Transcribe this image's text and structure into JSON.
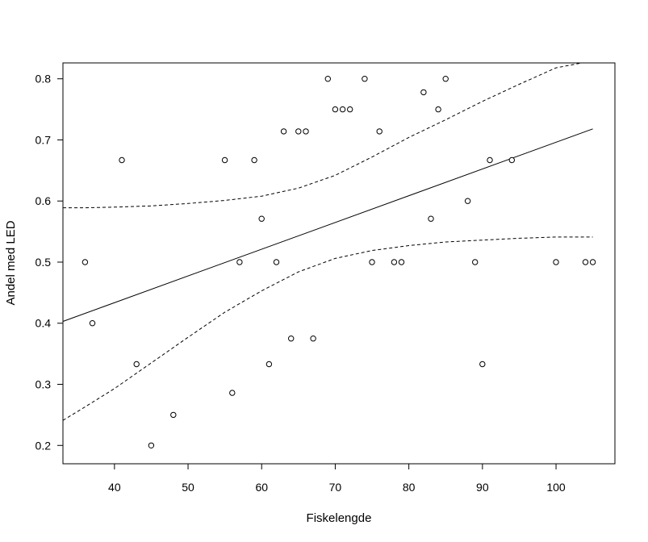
{
  "chart_data": {
    "type": "scatter",
    "title": "",
    "xlabel": "Fiskelengde",
    "ylabel": "Andel med LED",
    "xlim": [
      33,
      108
    ],
    "ylim": [
      0.17,
      0.826
    ],
    "xticks": [
      40,
      50,
      60,
      70,
      80,
      90,
      100
    ],
    "yticks": [
      0.2,
      0.3,
      0.4,
      0.5,
      0.6,
      0.7,
      0.8
    ],
    "xtick_labels": [
      "40",
      "50",
      "60",
      "70",
      "80",
      "90",
      "100"
    ],
    "ytick_labels": [
      "0.2",
      "0.3",
      "0.4",
      "0.5",
      "0.6",
      "0.7",
      "0.8"
    ],
    "grid": false,
    "points": [
      {
        "x": 36,
        "y": 0.5
      },
      {
        "x": 37,
        "y": 0.4
      },
      {
        "x": 41,
        "y": 0.667
      },
      {
        "x": 43,
        "y": 0.333
      },
      {
        "x": 45,
        "y": 0.2
      },
      {
        "x": 48,
        "y": 0.25
      },
      {
        "x": 55,
        "y": 0.667
      },
      {
        "x": 56,
        "y": 0.286
      },
      {
        "x": 57,
        "y": 0.5
      },
      {
        "x": 59,
        "y": 0.667
      },
      {
        "x": 60,
        "y": 0.571
      },
      {
        "x": 61,
        "y": 0.333
      },
      {
        "x": 62,
        "y": 0.5
      },
      {
        "x": 63,
        "y": 0.714
      },
      {
        "x": 64,
        "y": 0.375
      },
      {
        "x": 65,
        "y": 0.714
      },
      {
        "x": 66,
        "y": 0.714
      },
      {
        "x": 67,
        "y": 0.375
      },
      {
        "x": 69,
        "y": 0.8
      },
      {
        "x": 70,
        "y": 0.75
      },
      {
        "x": 71,
        "y": 0.75
      },
      {
        "x": 72,
        "y": 0.75
      },
      {
        "x": 74,
        "y": 0.8
      },
      {
        "x": 75,
        "y": 0.5
      },
      {
        "x": 76,
        "y": 0.714
      },
      {
        "x": 78,
        "y": 0.5
      },
      {
        "x": 79,
        "y": 0.5
      },
      {
        "x": 82,
        "y": 0.778
      },
      {
        "x": 83,
        "y": 0.571
      },
      {
        "x": 84,
        "y": 0.75
      },
      {
        "x": 85,
        "y": 0.8
      },
      {
        "x": 88,
        "y": 0.6
      },
      {
        "x": 89,
        "y": 0.5
      },
      {
        "x": 90,
        "y": 0.333
      },
      {
        "x": 91,
        "y": 0.667
      },
      {
        "x": 94,
        "y": 0.667
      },
      {
        "x": 100,
        "y": 0.5
      },
      {
        "x": 104,
        "y": 0.5
      },
      {
        "x": 105,
        "y": 0.5
      }
    ],
    "fit_line": {
      "x": [
        33,
        105
      ],
      "y": [
        0.403,
        0.718
      ]
    },
    "upper_band": {
      "x": [
        33,
        36,
        40,
        45,
        50,
        55,
        60,
        65,
        70,
        75,
        80,
        85,
        90,
        95,
        100,
        103.5
      ],
      "y": [
        0.589,
        0.589,
        0.59,
        0.592,
        0.596,
        0.601,
        0.608,
        0.621,
        0.642,
        0.672,
        0.704,
        0.733,
        0.763,
        0.791,
        0.818,
        0.826
      ]
    },
    "lower_band": {
      "x": [
        33,
        36,
        40,
        45,
        50,
        55,
        60,
        65,
        70,
        75,
        80,
        85,
        90,
        95,
        100,
        105
      ],
      "y": [
        0.241,
        0.263,
        0.293,
        0.335,
        0.377,
        0.418,
        0.453,
        0.484,
        0.506,
        0.519,
        0.527,
        0.533,
        0.536,
        0.539,
        0.541,
        0.541
      ]
    }
  }
}
